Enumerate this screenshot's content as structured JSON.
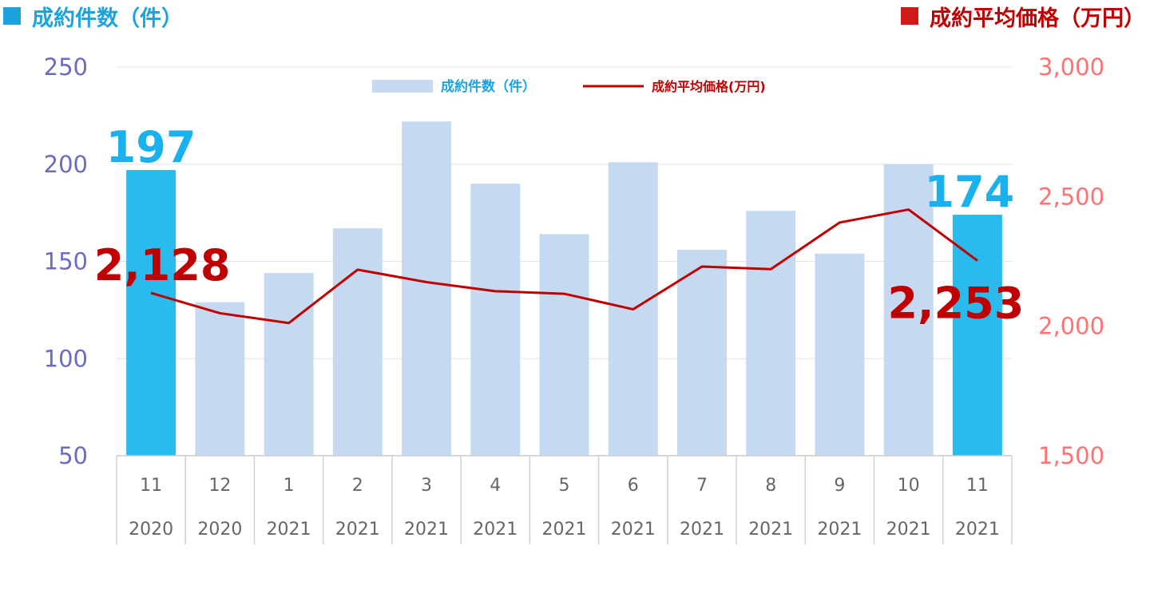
{
  "header": {
    "left_title": "成約件数（件）",
    "right_title": "成約平均価格（万円）"
  },
  "colors": {
    "bar": "#c5d9f1",
    "bar_highlight": "#29bbee",
    "line": "#c00000",
    "left_axis": "#6b6bbf",
    "right_axis": "#ff7272"
  },
  "chart_data": {
    "type": "bar",
    "categories": [
      [
        "11",
        "2020"
      ],
      [
        "12",
        "2020"
      ],
      [
        "1",
        "2021"
      ],
      [
        "2",
        "2021"
      ],
      [
        "3",
        "2021"
      ],
      [
        "4",
        "2021"
      ],
      [
        "5",
        "2021"
      ],
      [
        "6",
        "2021"
      ],
      [
        "7",
        "2021"
      ],
      [
        "8",
        "2021"
      ],
      [
        "9",
        "2021"
      ],
      [
        "10",
        "2021"
      ],
      [
        "11",
        "2021"
      ]
    ],
    "series": [
      {
        "name": "成約件数（件）",
        "type": "bar",
        "axis": "left",
        "values": [
          197,
          129,
          144,
          167,
          222,
          190,
          164,
          201,
          156,
          176,
          154,
          200,
          174
        ],
        "highlight": [
          0,
          12
        ]
      },
      {
        "name": "成約平均価格(万円)",
        "type": "line",
        "axis": "right",
        "values": [
          2128,
          2050,
          2012,
          2218,
          2170,
          2135,
          2125,
          2065,
          2230,
          2220,
          2400,
          2450,
          2253
        ]
      }
    ],
    "y_left": {
      "ylim": [
        50,
        250
      ],
      "ticks": [
        "50",
        "100",
        "150",
        "200",
        "250"
      ]
    },
    "y_right": {
      "ylim": [
        1500,
        3000
      ],
      "ticks": [
        "1,500",
        "2,000",
        "2,500",
        "3,000"
      ]
    },
    "data_labels": {
      "bar": [
        {
          "index": 0,
          "text": "197"
        },
        {
          "index": 12,
          "text": "174"
        }
      ],
      "line": [
        {
          "index": 0,
          "text": "2,128"
        },
        {
          "index": 12,
          "text": "2,253"
        }
      ]
    },
    "legend_position": "top-center",
    "grid": true
  }
}
